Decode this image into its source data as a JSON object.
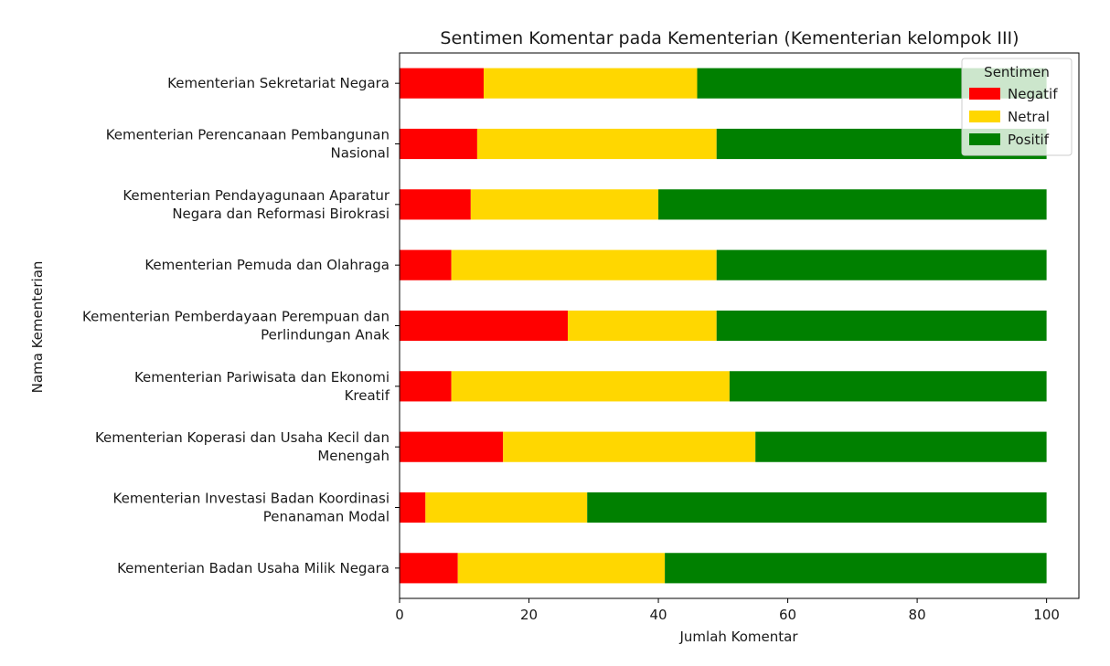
{
  "colors": {
    "Negatif": "#ff0000",
    "Netral": "#ffd700",
    "Positif": "#008000"
  },
  "chart_data": {
    "type": "bar",
    "orientation": "horizontal",
    "stacked": true,
    "title": "Sentimen Komentar pada Kementerian (Kementerian kelompok III)",
    "xlabel": "Jumlah Komentar",
    "ylabel": "Nama Kementerian",
    "xlim": [
      0,
      105
    ],
    "xticks": [
      "0",
      "20",
      "40",
      "60",
      "80",
      "100"
    ],
    "grid": false,
    "legend": {
      "title": "Sentimen",
      "placement": "top-right",
      "entries": [
        "Negatif",
        "Netral",
        "Positif"
      ]
    },
    "categories": [
      [
        "Kementerian Sekretariat Negara"
      ],
      [
        "Kementerian Perencanaan Pembangunan",
        "Nasional"
      ],
      [
        "Kementerian Pendayagunaan Aparatur",
        "Negara dan Reformasi Birokrasi"
      ],
      [
        "Kementerian Pemuda dan Olahraga"
      ],
      [
        "Kementerian Pemberdayaan Perempuan dan",
        "Perlindungan Anak"
      ],
      [
        "Kementerian Pariwisata dan Ekonomi",
        "Kreatif"
      ],
      [
        "Kementerian Koperasi dan Usaha Kecil dan",
        "Menengah"
      ],
      [
        "Kementerian Investasi Badan Koordinasi",
        "Penanaman Modal"
      ],
      [
        "Kementerian Badan Usaha Milik Negara"
      ]
    ],
    "series": [
      {
        "name": "Negatif",
        "values": [
          13,
          12,
          11,
          8,
          26,
          8,
          16,
          4,
          9
        ]
      },
      {
        "name": "Netral",
        "values": [
          33,
          37,
          29,
          41,
          23,
          43,
          39,
          25,
          32
        ]
      },
      {
        "name": "Positif",
        "values": [
          54,
          51,
          60,
          51,
          51,
          49,
          45,
          71,
          59
        ]
      }
    ]
  }
}
